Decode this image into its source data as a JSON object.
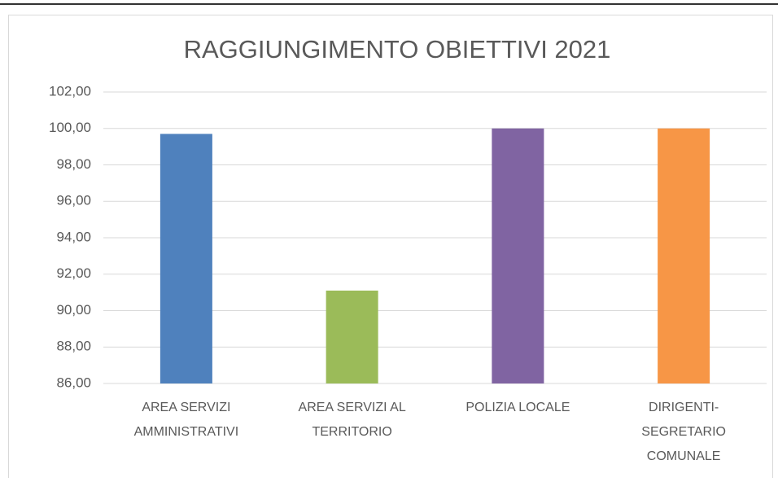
{
  "chart_data": {
    "type": "bar",
    "title": "RAGGIUNGIMENTO OBIETTIVI 2021",
    "categories": [
      "AREA SERVIZI AMMINISTRATIVI",
      "AREA SERVIZI AL TERRITORIO",
      "POLIZIA LOCALE",
      "DIRIGENTI-SEGRETARIO COMUNALE"
    ],
    "values": [
      99.7,
      91.1,
      100,
      100
    ],
    "colors": [
      "#4f81bd",
      "#9bbb59",
      "#8064a2",
      "#f79646"
    ],
    "ylim": [
      86,
      102
    ],
    "yticks": [
      {
        "value": 86,
        "label": "86,00"
      },
      {
        "value": 88,
        "label": "88,00"
      },
      {
        "value": 90,
        "label": "90,00"
      },
      {
        "value": 92,
        "label": "92,00"
      },
      {
        "value": 94,
        "label": "94,00"
      },
      {
        "value": 96,
        "label": "96,00"
      },
      {
        "value": 98,
        "label": "98,00"
      },
      {
        "value": 100,
        "label": "100,00"
      },
      {
        "value": 102,
        "label": "102,00"
      }
    ],
    "grid": true
  }
}
